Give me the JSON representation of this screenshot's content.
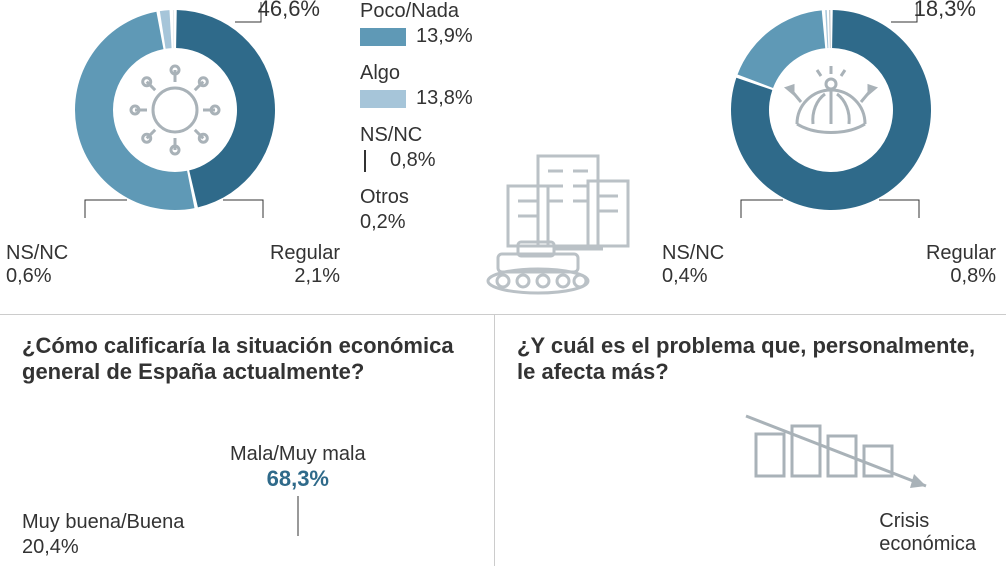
{
  "colors": {
    "dark": "#2f6a8a",
    "mid": "#5f99b6",
    "light": "#a6c5d9",
    "icon": "#a9b2b8",
    "text": "#333333",
    "highlight_val": "#2f6a8a",
    "divider": "#cccccc",
    "bg": "#ffffff"
  },
  "typography": {
    "base_fontsize": 20,
    "question_fontsize": 22,
    "question_weight": 600,
    "value_bold_fontsize": 22
  },
  "donut_style": {
    "outer_r": 100,
    "inner_r": 62,
    "gap_deg": 2
  },
  "donut_left": {
    "top_right": {
      "value": "46,6%"
    },
    "bottom_left": {
      "label": "NS/NC",
      "value": "0,6%"
    },
    "bottom_right": {
      "label": "Regular",
      "value": "2,1%"
    },
    "segments": [
      {
        "color_key": "dark",
        "pct": 46.6
      },
      {
        "color_key": "mid",
        "pct": 50.7
      },
      {
        "color_key": "light",
        "pct": 2.1
      },
      {
        "color_key": "icon",
        "pct": 0.6
      }
    ],
    "center_icon": "virus"
  },
  "legend": {
    "items": [
      {
        "label": "Poco/Nada",
        "value": "13,9%",
        "swatch": "mid"
      },
      {
        "label": "Algo",
        "value": "13,8%",
        "swatch": "light"
      },
      {
        "label": "NS/NC",
        "value": "0,8%",
        "swatch": "tick"
      },
      {
        "label": "Otros",
        "value": "0,2%",
        "swatch": "none"
      }
    ],
    "side_icon": "war_building"
  },
  "donut_right": {
    "top_right": {
      "value": "18,3%"
    },
    "bottom_left": {
      "label": "NS/NC",
      "value": "0,4%"
    },
    "bottom_right": {
      "label": "Regular",
      "value": "0,8%"
    },
    "segments": [
      {
        "color_key": "dark",
        "pct": 80.5
      },
      {
        "color_key": "mid",
        "pct": 18.3
      },
      {
        "color_key": "light",
        "pct": 0.8
      },
      {
        "color_key": "icon",
        "pct": 0.4
      }
    ],
    "center_icon": "globe"
  },
  "q_left": {
    "question": "¿Cómo calificaría la situación económica general de España actualmente?",
    "main_answer": {
      "label": "Mala/Muy mala",
      "value": "68,3%",
      "value_color": "highlight_val"
    },
    "second_answer": {
      "label": "Muy buena/Buena",
      "value": "20,4%"
    }
  },
  "q_right": {
    "question": "¿Y cuál es el problema que, personalmente, le afecta más?",
    "crisis_label_line1": "Crisis",
    "crisis_label_line2": "económica",
    "bars": {
      "heights": [
        42,
        50,
        40,
        30
      ],
      "color_key": "icon",
      "arrow_color_key": "icon"
    }
  }
}
